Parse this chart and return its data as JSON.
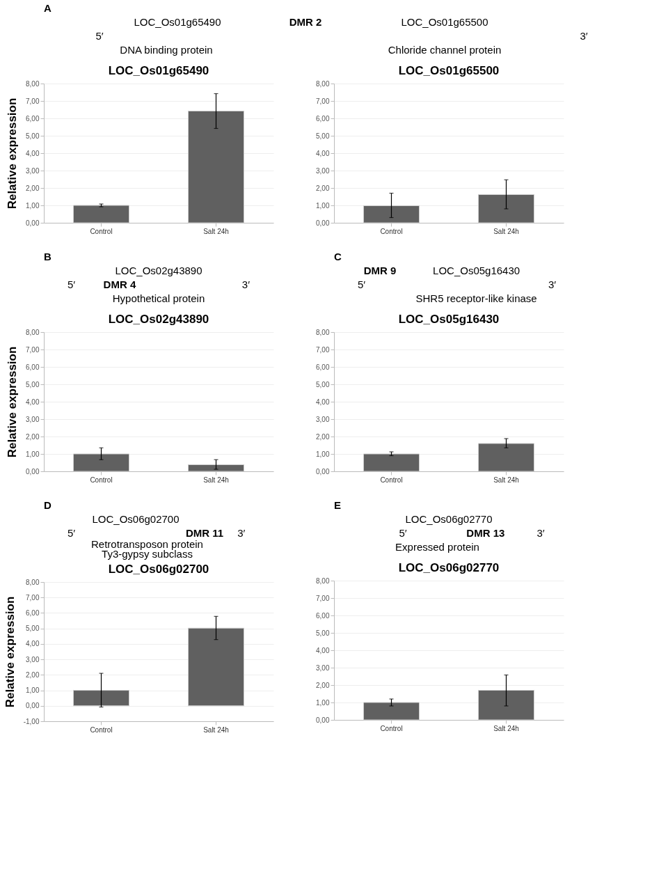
{
  "chart_data": [
    {
      "type": "bar",
      "title": "LOC_Os01g65490",
      "ylabel": "Relative expression",
      "categories": [
        "Control",
        "Salt 24h"
      ],
      "values": [
        1.0,
        6.42
      ],
      "errors": [
        [
          0.92,
          1.08
        ],
        [
          5.42,
          7.42
        ]
      ],
      "color": "#606060",
      "ylim": [
        0,
        8
      ],
      "yticks": [
        {
          "value": 0,
          "label": "0,00"
        },
        {
          "value": 1,
          "label": "1,00"
        },
        {
          "value": 2,
          "label": "2,00"
        },
        {
          "value": 3,
          "label": "3,00"
        },
        {
          "value": 4,
          "label": "4,00"
        },
        {
          "value": 5,
          "label": "5,00"
        },
        {
          "value": 6,
          "label": "6,00"
        },
        {
          "value": 7,
          "label": "7,00"
        },
        {
          "value": 8,
          "label": "8,00"
        }
      ],
      "grid": "y",
      "annotations": [
        "A",
        "5′",
        "LOC_Os01g65490",
        "DNA binding protein",
        "DMR 2",
        "LOC_Os01g65500",
        "Chloride channel protein",
        "3′"
      ]
    },
    {
      "type": "bar",
      "title": "LOC_Os01g65500",
      "categories": [
        "Control",
        "Salt 24h"
      ],
      "values": [
        0.98,
        1.62
      ],
      "errors": [
        [
          0.3,
          1.7
        ],
        [
          0.8,
          2.47
        ]
      ],
      "color": "#606060",
      "ylim": [
        0,
        8
      ],
      "yticks": [
        {
          "value": 0,
          "label": "0,00"
        },
        {
          "value": 1,
          "label": "1,00"
        },
        {
          "value": 2,
          "label": "2,00"
        },
        {
          "value": 3,
          "label": "3,00"
        },
        {
          "value": 4,
          "label": "4,00"
        },
        {
          "value": 5,
          "label": "5,00"
        },
        {
          "value": 6,
          "label": "6,00"
        },
        {
          "value": 7,
          "label": "7,00"
        },
        {
          "value": 8,
          "label": "8,00"
        }
      ],
      "grid": "y"
    },
    {
      "type": "bar",
      "title": "LOC_Os02g43890",
      "ylabel": "Relative expression",
      "categories": [
        "Control",
        "Salt 24h"
      ],
      "values": [
        1.0,
        0.38
      ],
      "errors": [
        [
          0.67,
          1.35
        ],
        [
          0.12,
          0.67
        ]
      ],
      "color": "#606060",
      "ylim": [
        0,
        8
      ],
      "yticks": [
        {
          "value": 0,
          "label": "0,00"
        },
        {
          "value": 1,
          "label": "1,00"
        },
        {
          "value": 2,
          "label": "2,00"
        },
        {
          "value": 3,
          "label": "3,00"
        },
        {
          "value": 4,
          "label": "4,00"
        },
        {
          "value": 5,
          "label": "5,00"
        },
        {
          "value": 6,
          "label": "6,00"
        },
        {
          "value": 7,
          "label": "7,00"
        },
        {
          "value": 8,
          "label": "8,00"
        }
      ],
      "grid": "y",
      "annotations": [
        "B",
        "LOC_Os02g43890",
        "5′",
        "DMR 4",
        "3′",
        "Hypothetical protein"
      ]
    },
    {
      "type": "bar",
      "title": "LOC_Os05g16430",
      "categories": [
        "Control",
        "Salt 24h"
      ],
      "values": [
        1.0,
        1.6
      ],
      "errors": [
        [
          0.9,
          1.12
        ],
        [
          1.35,
          1.88
        ]
      ],
      "color": "#606060",
      "ylim": [
        0,
        8
      ],
      "yticks": [
        {
          "value": 0,
          "label": "0,00"
        },
        {
          "value": 1,
          "label": "1,00"
        },
        {
          "value": 2,
          "label": "2,00"
        },
        {
          "value": 3,
          "label": "3,00"
        },
        {
          "value": 4,
          "label": "4,00"
        },
        {
          "value": 5,
          "label": "5,00"
        },
        {
          "value": 6,
          "label": "6,00"
        },
        {
          "value": 7,
          "label": "7,00"
        },
        {
          "value": 8,
          "label": "8,00"
        }
      ],
      "grid": "y",
      "annotations": [
        "C",
        "DMR 9",
        "LOC_Os05g16430",
        "5′",
        "3′",
        "SHR5 receptor-like kinase"
      ]
    },
    {
      "type": "bar",
      "title": "LOC_Os06g02700",
      "ylabel": "Relative expression",
      "categories": [
        "Control",
        "Salt 24h"
      ],
      "values": [
        1.0,
        5.02
      ],
      "errors": [
        [
          -0.08,
          2.1
        ],
        [
          4.28,
          5.78
        ]
      ],
      "color": "#606060",
      "ylim": [
        -1,
        8
      ],
      "yticks": [
        {
          "value": -1,
          "label": "-1,00"
        },
        {
          "value": 0,
          "label": "0,00"
        },
        {
          "value": 1,
          "label": "1,00"
        },
        {
          "value": 2,
          "label": "2,00"
        },
        {
          "value": 3,
          "label": "3,00"
        },
        {
          "value": 4,
          "label": "4,00"
        },
        {
          "value": 5,
          "label": "5,00"
        },
        {
          "value": 6,
          "label": "6,00"
        },
        {
          "value": 7,
          "label": "7,00"
        },
        {
          "value": 8,
          "label": "8,00"
        }
      ],
      "grid": "y",
      "annotations": [
        "D",
        "LOC_Os06g02700",
        "5′",
        "DMR 11",
        "3′",
        "Retrotransposon protein",
        "Ty3-gypsy subclass"
      ]
    },
    {
      "type": "bar",
      "title": "LOC_Os06g02770",
      "categories": [
        "Control",
        "Salt 24h"
      ],
      "values": [
        1.0,
        1.7
      ],
      "errors": [
        [
          0.8,
          1.2
        ],
        [
          0.8,
          2.58
        ]
      ],
      "color": "#606060",
      "ylim": [
        0,
        8
      ],
      "yticks": [
        {
          "value": 0,
          "label": "0,00"
        },
        {
          "value": 1,
          "label": "1,00"
        },
        {
          "value": 2,
          "label": "2,00"
        },
        {
          "value": 3,
          "label": "3,00"
        },
        {
          "value": 4,
          "label": "4,00"
        },
        {
          "value": 5,
          "label": "5,00"
        },
        {
          "value": 6,
          "label": "6,00"
        },
        {
          "value": 7,
          "label": "7,00"
        },
        {
          "value": 8,
          "label": "8,00"
        }
      ],
      "grid": "y",
      "annotations": [
        "E",
        "LOC_Os06g02770",
        "5′",
        "DMR 13",
        "3′",
        "Expressed protein"
      ]
    }
  ]
}
